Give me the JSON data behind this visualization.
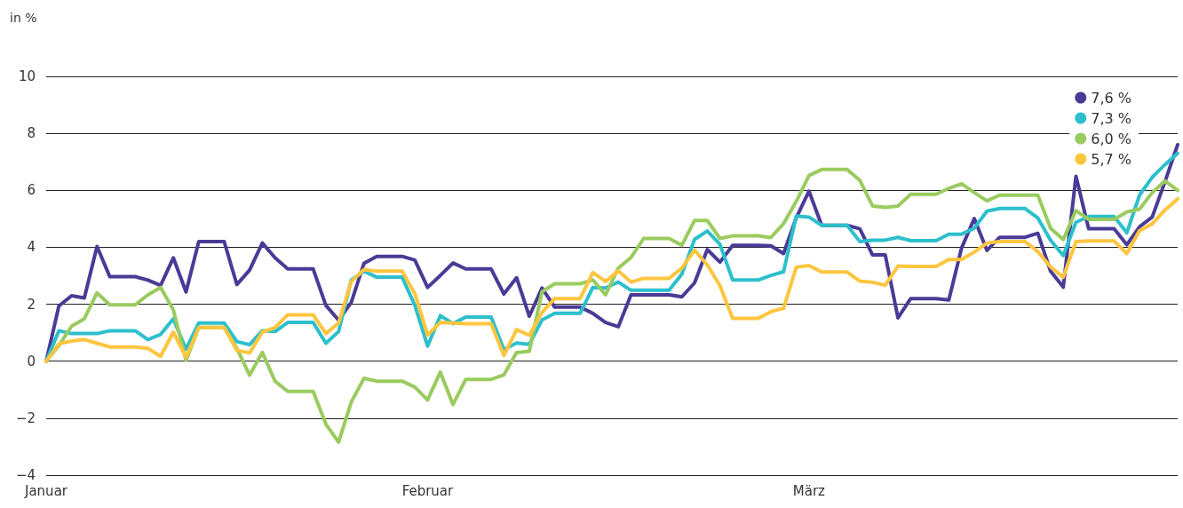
{
  "chart_data": {
    "type": "line",
    "ylabel": "in %",
    "categories": [
      "Januar",
      null,
      null,
      null,
      null,
      null,
      null,
      null,
      null,
      null,
      null,
      null,
      null,
      null,
      null,
      null,
      null,
      null,
      null,
      null,
      null,
      null,
      null,
      null,
      null,
      null,
      null,
      null,
      null,
      null,
      "Februar",
      null,
      null,
      null,
      null,
      null,
      null,
      null,
      null,
      null,
      null,
      null,
      null,
      null,
      null,
      null,
      null,
      null,
      null,
      null,
      null,
      null,
      null,
      null,
      null,
      null,
      null,
      null,
      null,
      null,
      "März",
      null,
      null,
      null,
      null,
      null,
      null,
      null,
      null,
      null,
      null,
      null,
      null,
      null,
      null,
      null,
      null,
      null,
      null,
      null,
      null,
      null,
      null,
      null,
      null,
      null,
      null,
      null,
      null,
      null
    ],
    "series": [
      {
        "name": "7,6 %",
        "color": "#4b3a96",
        "values": [
          0,
          1.94,
          2.3,
          2.22,
          4.03,
          2.97,
          2.97,
          2.97,
          2.85,
          2.66,
          3.63,
          2.43,
          4.2,
          4.2,
          4.2,
          2.69,
          3.2,
          4.15,
          3.63,
          3.24,
          3.24,
          3.24,
          1.96,
          1.44,
          2.07,
          3.44,
          3.68,
          3.68,
          3.68,
          3.55,
          2.59,
          3.01,
          3.45,
          3.24,
          3.24,
          3.24,
          2.36,
          2.93,
          1.58,
          2.57,
          1.9,
          1.9,
          1.9,
          1.68,
          1.36,
          1.21,
          2.33,
          2.33,
          2.33,
          2.33,
          2.26,
          2.75,
          3.92,
          3.48,
          4.07,
          4.07,
          4.07,
          4.05,
          3.78,
          5.04,
          5.97,
          4.77,
          4.77,
          4.77,
          4.65,
          3.73,
          3.73,
          1.52,
          2.2,
          2.2,
          2.2,
          2.15,
          3.97,
          5.01,
          3.89,
          4.35,
          4.35,
          4.35,
          4.49,
          3.16,
          2.6,
          6.49,
          4.65,
          4.65,
          4.65,
          4.09,
          4.72,
          5.06,
          6.3,
          7.6
        ]
      },
      {
        "name": "7,3 %",
        "color": "#2dbfcc",
        "values": [
          0,
          1.07,
          0.97,
          0.97,
          0.97,
          1.07,
          1.07,
          1.07,
          0.76,
          0.94,
          1.49,
          0.42,
          1.34,
          1.34,
          1.34,
          0.69,
          0.58,
          1.07,
          1.04,
          1.36,
          1.36,
          1.36,
          0.63,
          1.04,
          2.85,
          3.16,
          2.95,
          2.95,
          2.95,
          1.96,
          0.53,
          1.6,
          1.32,
          1.55,
          1.55,
          1.55,
          0.41,
          0.64,
          0.59,
          1.45,
          1.68,
          1.68,
          1.68,
          2.59,
          2.57,
          2.78,
          2.49,
          2.49,
          2.49,
          2.49,
          3.06,
          4.28,
          4.57,
          4.1,
          2.85,
          2.85,
          2.85,
          3.01,
          3.14,
          5.1,
          5.06,
          4.77,
          4.77,
          4.77,
          4.2,
          4.25,
          4.25,
          4.35,
          4.23,
          4.23,
          4.23,
          4.46,
          4.46,
          4.67,
          5.27,
          5.36,
          5.36,
          5.36,
          5.03,
          4.25,
          3.71,
          4.88,
          5.08,
          5.08,
          5.08,
          4.51,
          5.83,
          6.46,
          6.9,
          7.3
        ]
      },
      {
        "name": "6,0 %",
        "color": "#9acb5f",
        "values": [
          0,
          0.55,
          1.23,
          1.49,
          2.4,
          1.98,
          1.98,
          1.98,
          2.33,
          2.59,
          1.81,
          0.03,
          1.18,
          1.18,
          1.18,
          0.45,
          -0.49,
          0.31,
          -0.7,
          -1.06,
          -1.06,
          -1.06,
          -2.21,
          -2.84,
          -1.43,
          -0.6,
          -0.7,
          -0.7,
          -0.7,
          -0.91,
          -1.36,
          -0.38,
          -1.52,
          -0.64,
          -0.64,
          -0.64,
          -0.48,
          0.3,
          0.35,
          2.44,
          2.72,
          2.72,
          2.72,
          2.85,
          2.33,
          3.27,
          3.64,
          4.31,
          4.31,
          4.31,
          4.07,
          4.94,
          4.94,
          4.31,
          4.4,
          4.4,
          4.4,
          4.34,
          4.83,
          5.61,
          6.52,
          6.73,
          6.73,
          6.73,
          6.35,
          5.45,
          5.4,
          5.45,
          5.86,
          5.86,
          5.86,
          6.07,
          6.23,
          5.92,
          5.63,
          5.83,
          5.83,
          5.83,
          5.83,
          4.67,
          4.27,
          5.29,
          4.98,
          4.98,
          4.98,
          5.24,
          5.34,
          5.92,
          6.33,
          6.0
        ]
      },
      {
        "name": "5,7 %",
        "color": "#fec53e",
        "values": [
          0,
          0.61,
          0.71,
          0.76,
          0.63,
          0.5,
          0.5,
          0.5,
          0.45,
          0.17,
          1.02,
          0.14,
          1.18,
          1.18,
          1.18,
          0.38,
          0.29,
          1.02,
          1.18,
          1.63,
          1.63,
          1.63,
          0.97,
          1.34,
          2.8,
          3.22,
          3.16,
          3.16,
          3.16,
          2.38,
          0.92,
          1.36,
          1.34,
          1.32,
          1.32,
          1.32,
          0.2,
          1.11,
          0.91,
          1.71,
          2.2,
          2.2,
          2.2,
          3.11,
          2.8,
          3.17,
          2.78,
          2.91,
          2.91,
          2.91,
          3.27,
          3.9,
          3.38,
          2.65,
          1.5,
          1.5,
          1.5,
          1.74,
          1.86,
          3.3,
          3.36,
          3.13,
          3.13,
          3.13,
          2.81,
          2.77,
          2.67,
          3.34,
          3.33,
          3.33,
          3.33,
          3.57,
          3.57,
          3.83,
          4.15,
          4.2,
          4.2,
          4.2,
          3.85,
          3.31,
          2.95,
          4.2,
          4.22,
          4.22,
          4.22,
          3.78,
          4.58,
          4.82,
          5.31,
          5.7
        ]
      }
    ],
    "ylim": [
      -4,
      10
    ],
    "yticks": [
      {
        "value": -4,
        "label": "−4"
      },
      {
        "value": -2,
        "label": "−2"
      },
      0,
      2,
      4,
      6,
      8,
      10
    ],
    "grid": "y",
    "legend": "top right",
    "line_style": "solid"
  }
}
